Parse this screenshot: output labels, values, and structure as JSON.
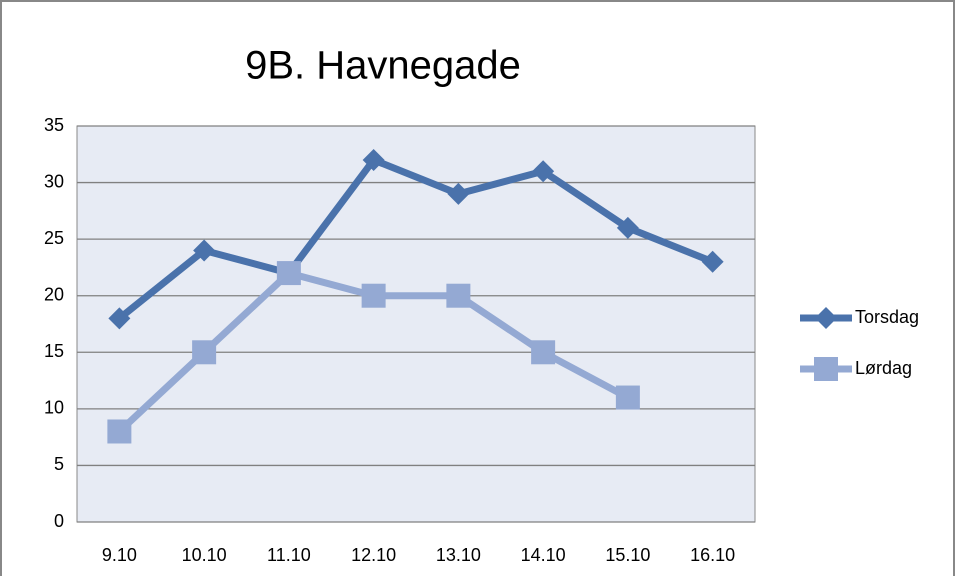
{
  "chart_data": {
    "type": "line",
    "title": "9B. Havnegade",
    "categories": [
      "9.10",
      "10.10",
      "11.10",
      "12.10",
      "13.10",
      "14.10",
      "15.10",
      "16.10"
    ],
    "series": [
      {
        "name": "Torsdag",
        "color": "#4a72ab",
        "marker": "diamond",
        "values": [
          18,
          24,
          22,
          32,
          29,
          31,
          26,
          23
        ]
      },
      {
        "name": "Lørdag",
        "color": "#94a9d3",
        "marker": "square",
        "values": [
          8,
          15,
          22,
          20,
          20,
          15,
          11,
          null
        ]
      }
    ],
    "ylim": [
      0,
      35
    ],
    "yticks": [
      0,
      5,
      10,
      15,
      20,
      25,
      30,
      35
    ],
    "grid": true,
    "legend": "right"
  }
}
